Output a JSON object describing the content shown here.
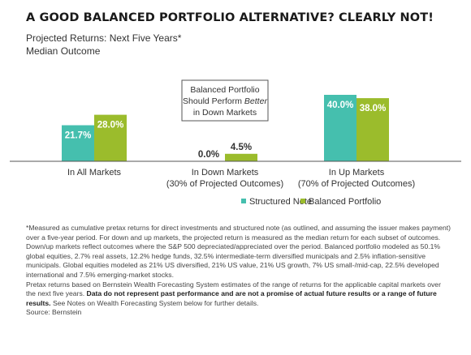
{
  "title": "A GOOD BALANCED PORTFOLIO ALTERNATIVE? CLEARLY NOT!",
  "subtitle_line1": "Projected Returns: Next Five Years*",
  "subtitle_line2": "Median Outcome",
  "callout": {
    "line1": "Balanced Portfolio",
    "line2_prefix": "Should Perform ",
    "line2_emph": "Better",
    "line3": "in Down Markets"
  },
  "colors": {
    "structured_note": "#45bfae",
    "balanced_portfolio": "#9bbc2c",
    "axis": "#555555"
  },
  "chart_data": {
    "type": "bar",
    "title": "A GOOD BALANCED PORTFOLIO ALTERNATIVE? CLEARLY NOT!",
    "subtitle": "Projected Returns: Next Five Years* — Median Outcome",
    "categories": [
      [
        "In All Markets"
      ],
      [
        "In Down Markets",
        "(30% of Projected Outcomes)"
      ],
      [
        "In Up Markets",
        "(70% of Projected Outcomes)"
      ]
    ],
    "series": [
      {
        "name": "Structured Note",
        "color": "#45bfae",
        "values": [
          21.7,
          0.0,
          40.0
        ],
        "labels": [
          "21.7%",
          "0.0%",
          "40.0%"
        ]
      },
      {
        "name": "Balanced Portfolio",
        "color": "#9bbc2c",
        "values": [
          28.0,
          4.5,
          38.0
        ],
        "labels": [
          "28.0%",
          "4.5%",
          "38.0%"
        ]
      }
    ],
    "ylim": [
      0,
      40
    ],
    "grid": false,
    "legend": "bottom-right",
    "data_labels": true
  },
  "footnote": {
    "p1": "*Measured as cumulative pretax returns for direct investments and structured note (as outlined, and assuming the issuer makes payment) over a five-year period. For down and up markets, the projected return is measured as the median return for each subset of outcomes. Down/up markets reflect outcomes where the S&P 500 depreciated/appreciated over the period. Balanced portfolio modeled as 50.1% global equities, 2.7% real assets, 12.2% hedge funds, 32.5% intermediate-term diversified municipals and 2.5% inflation-sensitive municipals. Global equities modeled as 21% US diversified, 21% US value, 21% US growth, 7% US small-/mid-cap, 22.5% developed international and 7.5% emerging-market stocks.",
    "p2_start": "Pretax returns based on Bernstein Wealth Forecasting System estimates of the range of returns for the applicable capital markets over the next five years. ",
    "p2_bold": "Data do not represent past performance and are not a promise of actual future results or a range of future results.",
    "p2_end": " See Notes on Wealth Forecasting System below for further details.",
    "source": "Source: Bernstein"
  }
}
